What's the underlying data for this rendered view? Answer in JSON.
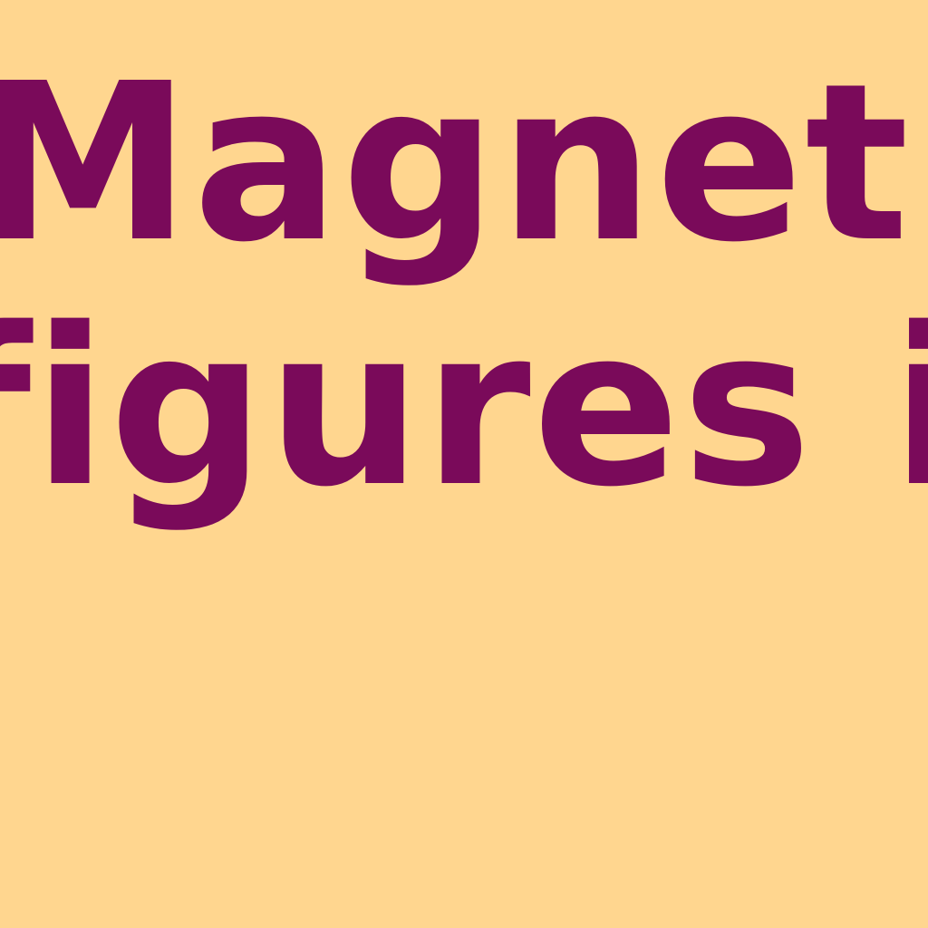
{
  "text": {
    "line1": "Magnetic",
    "line2": "figures in"
  },
  "colors": {
    "background": "#FFD68F",
    "text": "#7A0A5A"
  }
}
